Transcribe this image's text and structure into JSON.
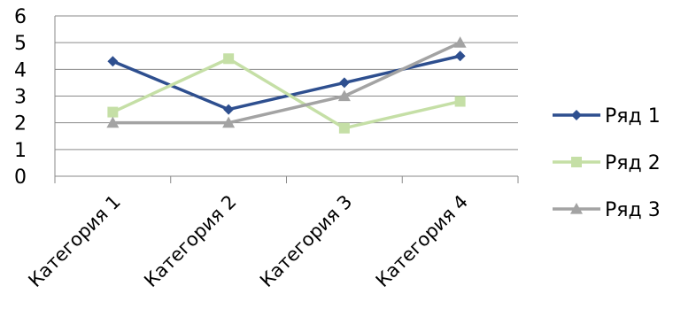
{
  "chart_data": {
    "type": "line",
    "categories": [
      "Категория 1",
      "Категория 2",
      "Категория 3",
      "Категория 4"
    ],
    "series": [
      {
        "name": "Ряд 1",
        "values": [
          4.3,
          2.5,
          3.5,
          4.5
        ],
        "color": "#2E4F8F",
        "marker": "diamond"
      },
      {
        "name": "Ряд 2",
        "values": [
          2.4,
          4.4,
          1.8,
          2.8
        ],
        "color": "#C5DFA6",
        "marker": "square"
      },
      {
        "name": "Ряд 3",
        "values": [
          2,
          2,
          3,
          5
        ],
        "color": "#A3A3A3",
        "marker": "triangle"
      }
    ],
    "yticks": [
      "0",
      "1",
      "2",
      "3",
      "4",
      "5",
      "6"
    ],
    "ylim": [
      0,
      6
    ],
    "grid": true,
    "legend": "right"
  }
}
